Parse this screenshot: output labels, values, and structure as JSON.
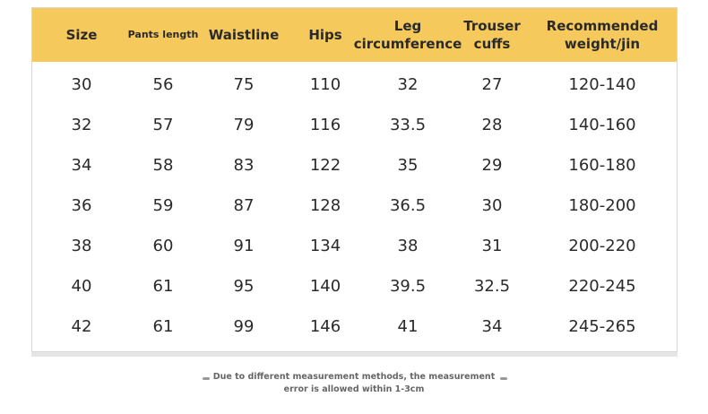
{
  "table": {
    "header": [
      "Size",
      "Pants length",
      "Waistline",
      "Hips",
      "Leg circumference",
      "Trouser cuffs",
      "Recommended weight/jin"
    ],
    "rows": [
      [
        "30",
        "56",
        "75",
        "110",
        "32",
        "27",
        "120-140"
      ],
      [
        "32",
        "57",
        "79",
        "116",
        "33.5",
        "28",
        "140-160"
      ],
      [
        "34",
        "58",
        "83",
        "122",
        "35",
        "29",
        "160-180"
      ],
      [
        "36",
        "59",
        "87",
        "128",
        "36.5",
        "30",
        "180-200"
      ],
      [
        "38",
        "60",
        "91",
        "134",
        "38",
        "31",
        "200-220"
      ],
      [
        "40",
        "61",
        "95",
        "140",
        "39.5",
        "32.5",
        "220-245"
      ],
      [
        "42",
        "61",
        "99",
        "146",
        "41",
        "34",
        "245-265"
      ]
    ]
  },
  "footer": {
    "note": "Due to different measurement methods, the measurement error is allowed within 1-3cm"
  }
}
